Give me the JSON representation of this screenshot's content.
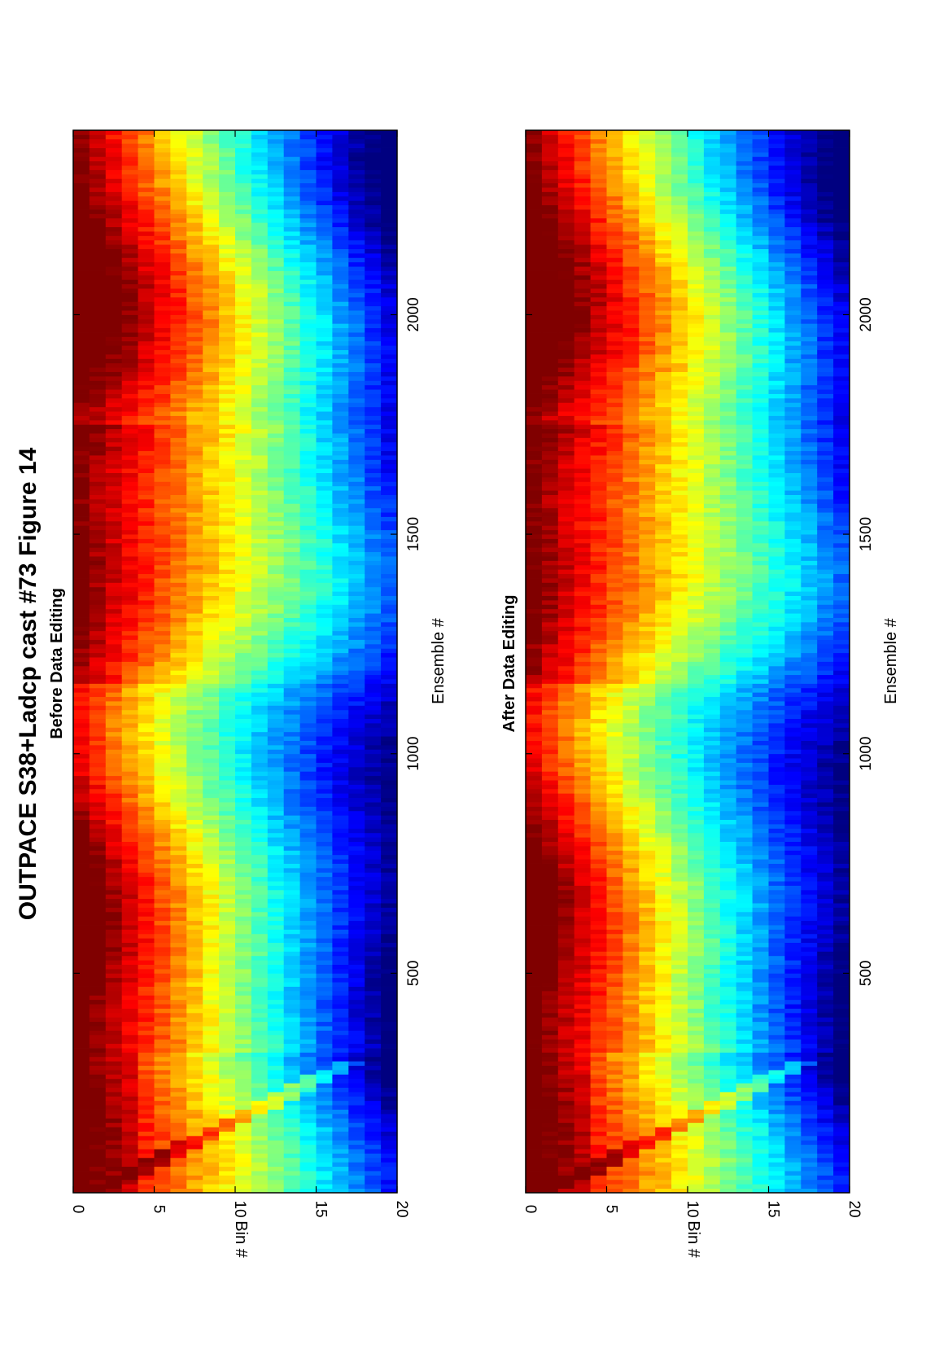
{
  "figure": {
    "title": "OUTPACE S38+Ladcp cast #73  Figure 14"
  },
  "chart_data": [
    {
      "type": "heatmap",
      "title": "Before Data Editing",
      "xlabel": "Ensemble #",
      "ylabel": "Bin #",
      "xlim": [
        0,
        2420
      ],
      "ylim": [
        0,
        20
      ],
      "xticks": [
        "500",
        "1000",
        "1500",
        "2000"
      ],
      "xtick_values": [
        500,
        1000,
        1500,
        2000
      ],
      "yticks": [
        "0",
        "5",
        "10",
        "15",
        "20"
      ],
      "ytick_values": [
        0,
        5,
        10,
        15,
        20
      ],
      "bins": 20,
      "ensembles": 2420,
      "colormap": "jet",
      "grid": false,
      "x_orientation": "rotated 90° (ensemble axis runs bottom-to-top)"
    },
    {
      "type": "heatmap",
      "title": "After Data Editing",
      "xlabel": "Ensemble #",
      "ylabel": "Bin #",
      "xlim": [
        0,
        2420
      ],
      "ylim": [
        0,
        20
      ],
      "xticks": [
        "500",
        "1000",
        "1500",
        "2000"
      ],
      "xtick_values": [
        500,
        1000,
        1500,
        2000
      ],
      "yticks": [
        "0",
        "5",
        "10",
        "15",
        "20"
      ],
      "ytick_values": [
        0,
        5,
        10,
        15,
        20
      ],
      "bins": 20,
      "ensembles": 2420,
      "colormap": "jet",
      "grid": false,
      "x_orientation": "rotated 90° (ensemble axis runs bottom-to-top)"
    }
  ]
}
